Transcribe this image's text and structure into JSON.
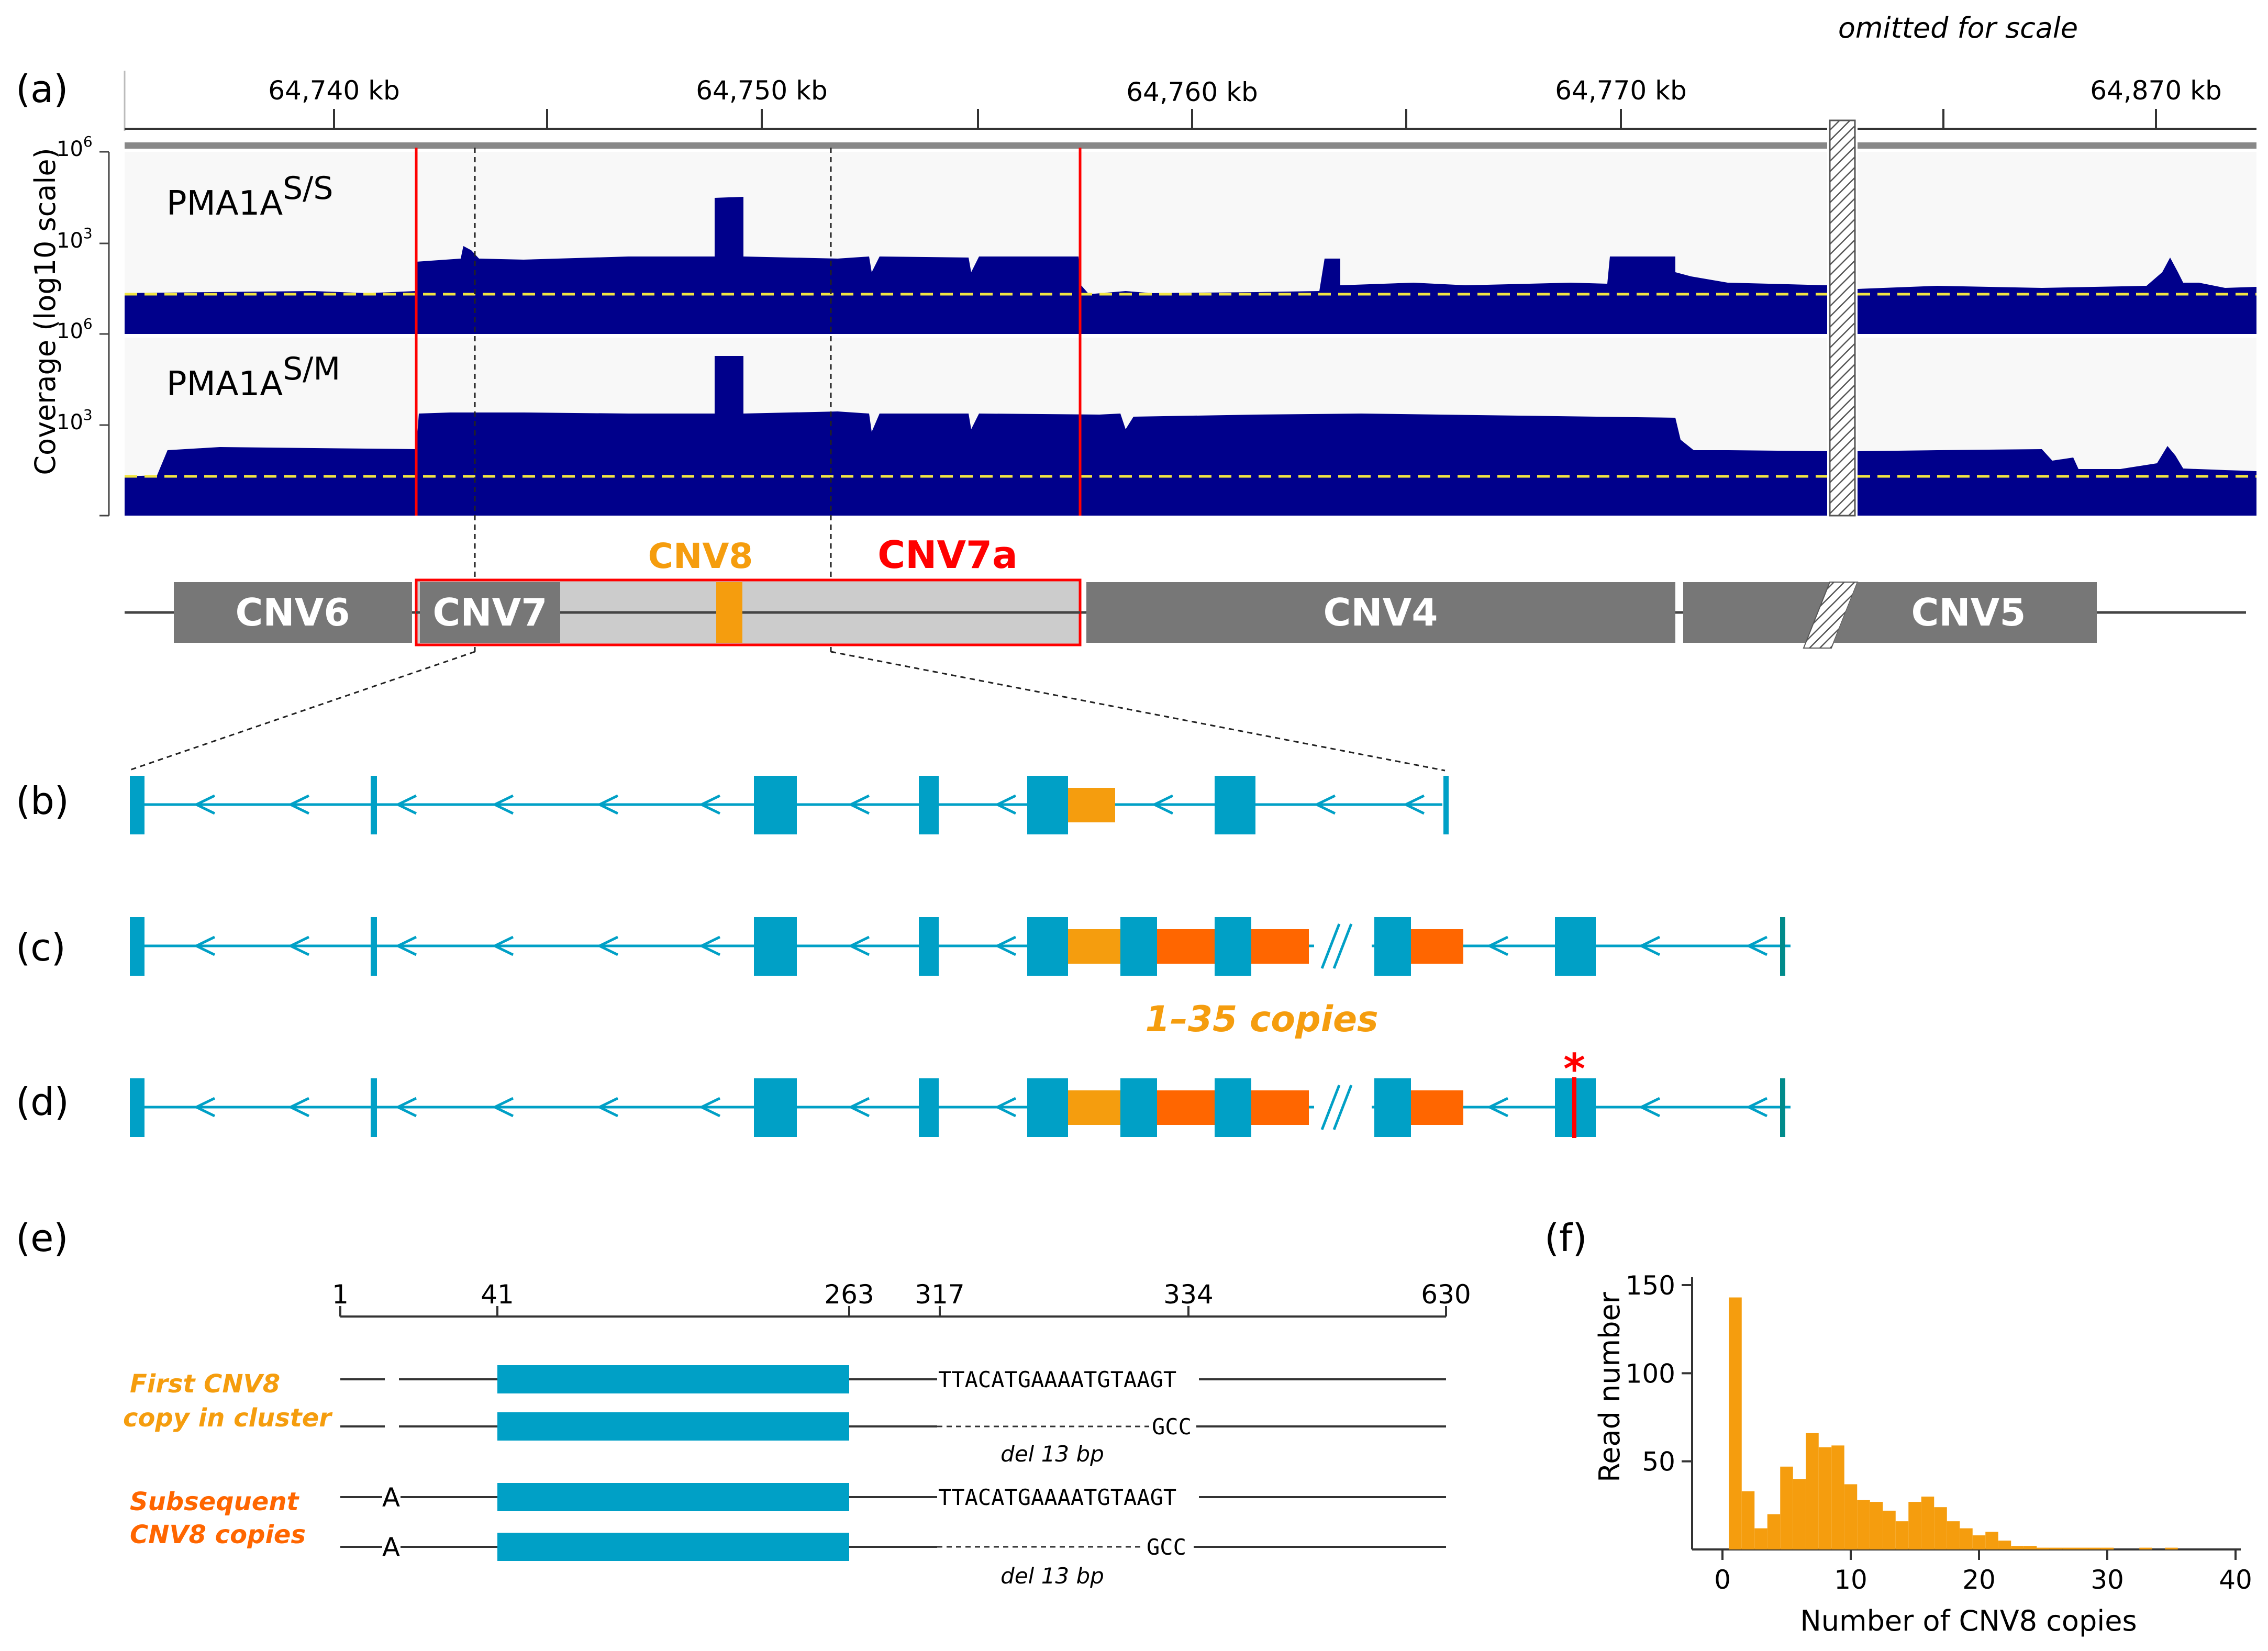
{
  "colors": {
    "coverage": "#00008b",
    "baseline": "#f0e442",
    "red": "#ff0000",
    "cnv_grey": "#777777",
    "cnv7a_fill": "#cccccc",
    "cnv8": "#f59d0e",
    "cnv8_sub": "#ff6600",
    "exon": "#00a0c6",
    "track_bg": "#f8f8f8"
  },
  "panels": {
    "a": "(a)",
    "b": "(b)",
    "c": "(c)",
    "d": "(d)",
    "e": "(e)",
    "f": "(f)"
  },
  "panel_a": {
    "omitted_label": "omitted for scale",
    "ticks": [
      "64,740 kb",
      "64,750 kb",
      "64,760 kb",
      "64,770 kb",
      "64,870 kb"
    ],
    "y_axis_label": "Coverage (log10 scale)",
    "y_ticks": {
      "top": "10",
      "top_exp": "6",
      "mid": "10",
      "mid_exp": "3"
    },
    "track1": {
      "base": "PMA1A",
      "sup": "S/S"
    },
    "track2": {
      "base": "PMA1A",
      "sup": "S/M"
    }
  },
  "cnv_labels": {
    "cnv6": "CNV6",
    "cnv7": "CNV7",
    "cnv8": "CNV8",
    "cnv7a": "CNV7a",
    "cnv4": "CNV4",
    "cnv5": "CNV5"
  },
  "copies_label": "1–35 copies",
  "panel_e": {
    "ticks": [
      "1",
      "41",
      "263",
      "317",
      "334",
      "630"
    ],
    "seq_full": "TTACATGAAAATGTAAGT",
    "seq_short": "GCC",
    "del_label": "del 13 bp",
    "allele_a": "A",
    "first_label_1": "First CNV8",
    "first_label_2": "copy in cluster",
    "sub_label_1": "Subsequent",
    "sub_label_2": "CNV8 copies"
  },
  "chart_data": {
    "type": "bar",
    "title": "",
    "xlabel": "Number of CNV8 copies",
    "ylabel": "Read number",
    "xlim": [
      0,
      40
    ],
    "ylim": [
      0,
      150
    ],
    "x_ticks": [
      "0",
      "10",
      "20",
      "30",
      "40"
    ],
    "y_ticks": [
      "50",
      "100",
      "150"
    ],
    "categories": [
      1,
      2,
      3,
      4,
      5,
      6,
      7,
      8,
      9,
      10,
      11,
      12,
      13,
      14,
      15,
      16,
      17,
      18,
      19,
      20,
      21,
      22,
      23,
      24,
      25,
      26,
      27,
      28,
      29,
      30,
      31,
      32,
      33,
      34,
      35
    ],
    "values": [
      143,
      33,
      12,
      20,
      47,
      40,
      66,
      58,
      59,
      37,
      28,
      27,
      22,
      16,
      27,
      30,
      24,
      16,
      12,
      8,
      10,
      5,
      2,
      2,
      1,
      1,
      1,
      1,
      1,
      1,
      0,
      0,
      1,
      0,
      1
    ]
  }
}
